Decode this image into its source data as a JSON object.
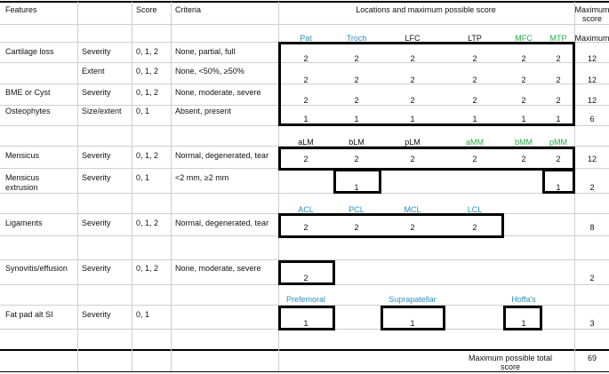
{
  "headers": {
    "features": "Features",
    "score": "Score",
    "criteria": "Criteria",
    "locations": "Locations and maximum possible score",
    "max_score_line1": "Maximum",
    "max_score_line2": "score"
  },
  "colors": {
    "patellofemoral": "#2a8fb8",
    "medial": "#27a844",
    "box": "#000000"
  },
  "knee_locations": {
    "pat": "Pat",
    "troch": "Troch",
    "lfc": "LFC",
    "ltp": "LTP",
    "mfc": "MFC",
    "mtp": "MTP",
    "maximum": "Maximum"
  },
  "meniscus_locations": {
    "alm": "aLM",
    "blm": "bLM",
    "plm": "pLM",
    "amm": "aMM",
    "bmm": "bMM",
    "pmm": "pMM"
  },
  "ligament_locations": {
    "acl": "ACL",
    "pcl": "PCL",
    "mcl": "MCL",
    "lcl": "LCL"
  },
  "fatpad_locations": {
    "prefemoral": "Prefemoral",
    "suprapatellar": "Suprapatellar",
    "hoffas": "Hoffa's"
  },
  "rows": {
    "cartilage_severity": {
      "feature": "Cartilage loss",
      "sub": "Severity",
      "score": "0, 1, 2",
      "criteria": "None, partial, full",
      "values": [
        "2",
        "2",
        "2",
        "2",
        "2",
        "2"
      ],
      "max": "12"
    },
    "cartilage_extent": {
      "sub": "Extent",
      "score": "0, 1, 2",
      "criteria": "None, <50%, ≥50%",
      "values": [
        "2",
        "2",
        "2",
        "2",
        "2",
        "2"
      ],
      "max": "12"
    },
    "bme": {
      "feature": "BME or Cyst",
      "sub": "Severity",
      "score": "0, 1, 2",
      "criteria": "None, moderate, severe",
      "values": [
        "2",
        "2",
        "2",
        "2",
        "2",
        "2"
      ],
      "max": "12"
    },
    "osteophytes": {
      "feature": "Osteophytes",
      "sub": "Size/extent",
      "score": "0, 1",
      "criteria": "Absent, present",
      "values": [
        "1",
        "1",
        "1",
        "1",
        "1",
        "1"
      ],
      "max": "6"
    },
    "meniscus": {
      "feature": "Mensicus",
      "sub": "Severity",
      "score": "0, 1, 2",
      "criteria": "Normal, degenerated, tear",
      "values": [
        "2",
        "2",
        "2",
        "2",
        "2",
        "2"
      ],
      "max": "12"
    },
    "extrusion": {
      "feature_line1": "Mensicus",
      "feature_line2": "extrusion",
      "sub": "Severity",
      "score": "0, 1",
      "criteria": "<2 mm, ≥2 mm",
      "values": [
        "1",
        "1"
      ],
      "max": "2"
    },
    "ligaments": {
      "feature": "Ligaments",
      "sub": "Severity",
      "score": "0, 1, 2",
      "criteria": "Normal, degenerated, tear",
      "values": [
        "2",
        "2",
        "2",
        "2"
      ],
      "max": "8"
    },
    "synovitis": {
      "feature": "Synovitis/effusion",
      "sub": "Severity",
      "score": "0, 1, 2",
      "criteria": "None, moderate, severe",
      "values": [
        "2"
      ],
      "max": "2"
    },
    "fatpad": {
      "feature": "Fat pad alt SI",
      "sub": "Severity",
      "score": "0, 1",
      "values": [
        "1",
        "1",
        "1"
      ],
      "max": "3"
    }
  },
  "total": {
    "label_line1": "Maximum possible total",
    "label_line2": "score",
    "value": "69"
  }
}
